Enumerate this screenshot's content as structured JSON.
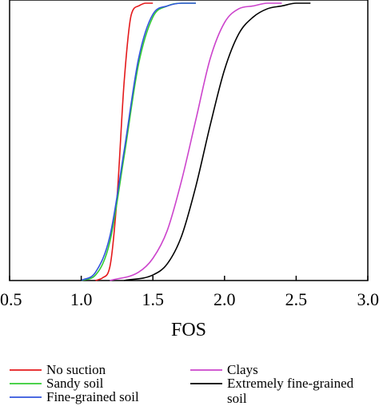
{
  "chart_data": {
    "type": "line",
    "title": "",
    "xlabel": "FOS",
    "ylabel": "",
    "xlim": [
      0.5,
      3.0
    ],
    "ylim": [
      0,
      1
    ],
    "xticks": [
      "0.5",
      "1.0",
      "1.5",
      "2.0",
      "2.5",
      "3.0"
    ],
    "grid": false,
    "legend_position": "bottom",
    "series": [
      {
        "name": "No suction",
        "color": "#e41a1c",
        "x": [
          1.1,
          1.15,
          1.2,
          1.25,
          1.3,
          1.35,
          1.4,
          1.45,
          1.5
        ],
        "y": [
          0.0,
          0.01,
          0.05,
          0.3,
          0.72,
          0.96,
          0.99,
          1.0,
          1.0
        ]
      },
      {
        "name": "Sandy soil",
        "color": "#33cc33",
        "x": [
          1.0,
          1.1,
          1.2,
          1.3,
          1.4,
          1.5,
          1.6,
          1.7,
          1.8
        ],
        "y": [
          0.0,
          0.02,
          0.14,
          0.45,
          0.78,
          0.95,
          0.99,
          1.0,
          1.0
        ]
      },
      {
        "name": "Fine-grained soil",
        "color": "#3355dd",
        "x": [
          1.0,
          1.1,
          1.2,
          1.3,
          1.4,
          1.5,
          1.6,
          1.7,
          1.8
        ],
        "y": [
          0.0,
          0.03,
          0.16,
          0.47,
          0.8,
          0.96,
          0.99,
          1.0,
          1.0
        ]
      },
      {
        "name": "Clays",
        "color": "#cc44cc",
        "x": [
          1.2,
          1.4,
          1.5,
          1.6,
          1.7,
          1.8,
          1.9,
          2.0,
          2.1,
          2.2,
          2.3,
          2.4
        ],
        "y": [
          0.0,
          0.03,
          0.08,
          0.18,
          0.36,
          0.58,
          0.8,
          0.93,
          0.98,
          0.99,
          1.0,
          1.0
        ]
      },
      {
        "name": "Extremely fine-grained soil",
        "color": "#000000",
        "x": [
          1.3,
          1.5,
          1.6,
          1.7,
          1.8,
          1.9,
          2.0,
          2.1,
          2.2,
          2.3,
          2.4,
          2.5,
          2.6
        ],
        "y": [
          0.0,
          0.02,
          0.06,
          0.16,
          0.34,
          0.56,
          0.76,
          0.89,
          0.95,
          0.98,
          0.99,
          1.0,
          1.0
        ]
      }
    ]
  }
}
